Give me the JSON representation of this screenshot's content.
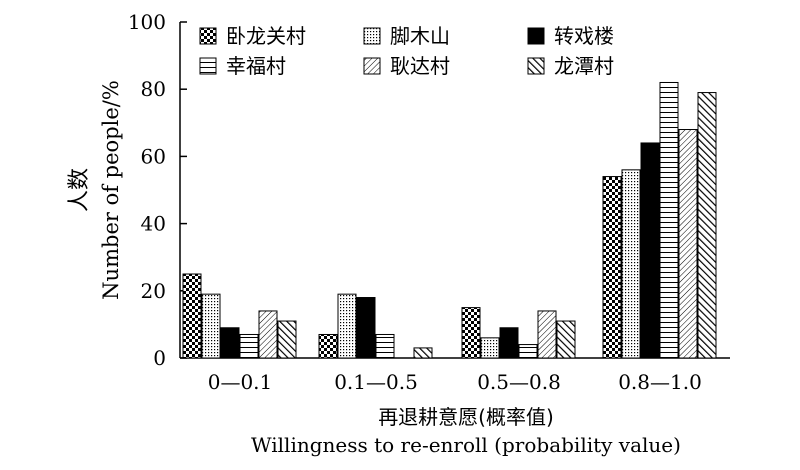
{
  "chart_data": {
    "type": "bar",
    "categories": [
      "0—0.1",
      "0.1—0.5",
      "0.5—0.8",
      "0.8—1.0"
    ],
    "series": [
      {
        "name": "卧龙关村",
        "pattern": "checker",
        "values": [
          25,
          7,
          15,
          54
        ]
      },
      {
        "name": "脚木山",
        "pattern": "dots",
        "values": [
          19,
          19,
          6,
          56
        ]
      },
      {
        "name": "转戏楼",
        "pattern": "solid",
        "values": [
          9,
          18,
          9,
          64
        ]
      },
      {
        "name": "幸福村",
        "pattern": "hlines",
        "values": [
          7,
          7,
          4,
          82
        ]
      },
      {
        "name": "耿达村",
        "pattern": "diag-fine",
        "values": [
          14,
          0,
          14,
          68
        ]
      },
      {
        "name": "龙潭村",
        "pattern": "diag-bold",
        "values": [
          11,
          3,
          11,
          79
        ]
      }
    ],
    "ylim": [
      0,
      100
    ],
    "yticks": [
      0,
      20,
      40,
      60,
      80,
      100
    ],
    "ylabel_cn": "人数",
    "ylabel_en": "Number of people/%",
    "xlabel_cn": "再退耕意愿(概率值)",
    "xlabel_en": "Willingness to re-enroll (probability value)",
    "legend_position": "top",
    "grid": false
  }
}
